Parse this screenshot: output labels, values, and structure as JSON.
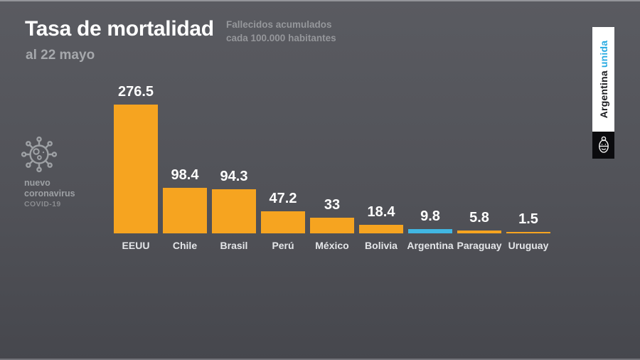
{
  "header": {
    "title": "Tasa de mortalidad",
    "date": "al 22 mayo",
    "subtitle_line1": "Fallecidos acumulados",
    "subtitle_line2": "cada 100.000 habitantes"
  },
  "badge": {
    "line1": "nuevo",
    "line2": "coronavirus",
    "covid": "COVID-19"
  },
  "banner": {
    "text_black": "Argentina",
    "text_blue": "unida",
    "blue": "#29abe2"
  },
  "chart_data": {
    "type": "bar",
    "title": "Tasa de mortalidad",
    "subtitle": "Fallecidos acumulados cada 100.000 habitantes",
    "date_note": "al 22 mayo",
    "categories": [
      "EEUU",
      "Chile",
      "Brasil",
      "Perú",
      "México",
      "Bolivia",
      "Argentina",
      "Paraguay",
      "Uruguay"
    ],
    "values": [
      276.5,
      98.4,
      94.3,
      47.2,
      33,
      18.4,
      9.8,
      5.8,
      1.5
    ],
    "value_labels": [
      "276.5",
      "98.4",
      "94.3",
      "47.2",
      "33",
      "18.4",
      "9.8",
      "5.8",
      "1.5"
    ],
    "xlabel": "",
    "ylabel": "Fallecidos acumulados cada 100.000 habitantes",
    "ylim": [
      0,
      280
    ],
    "grid": false,
    "legend": false,
    "bar_color": "#f6a420",
    "highlight_color": "#41b6e2",
    "highlight_index": 6,
    "background_color": "#515258"
  }
}
